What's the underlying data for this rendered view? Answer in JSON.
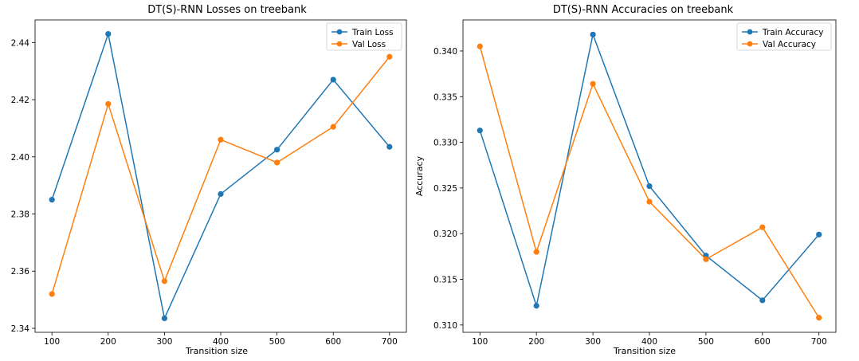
{
  "chart_data": [
    {
      "type": "line",
      "title": "DT(S)-RNN Losses on treebank",
      "xlabel": "Transition size",
      "ylabel": "",
      "x": [
        100,
        200,
        300,
        400,
        500,
        600,
        700
      ],
      "series": [
        {
          "name": "Train Loss",
          "color": "#1f77b4",
          "values": [
            2.385,
            2.443,
            2.3435,
            2.387,
            2.4025,
            2.427,
            2.4035
          ]
        },
        {
          "name": "Val Loss",
          "color": "#ff7f0e",
          "values": [
            2.352,
            2.4185,
            2.3565,
            2.406,
            2.398,
            2.4105,
            2.435
          ]
        }
      ],
      "xticks": [
        100,
        200,
        300,
        400,
        500,
        600,
        700
      ],
      "yticks": [
        2.34,
        2.36,
        2.38,
        2.4,
        2.42,
        2.44
      ],
      "ytick_labels": [
        "2.34",
        "2.36",
        "2.38",
        "2.40",
        "2.42",
        "2.44"
      ],
      "xlim": [
        70,
        730
      ],
      "ylim": [
        2.3386,
        2.4479
      ],
      "grid": false,
      "legend": "upper right"
    },
    {
      "type": "line",
      "title": "DT(S)-RNN Accuracies on treebank",
      "xlabel": "Transition size",
      "ylabel": "Accuracy",
      "x": [
        100,
        200,
        300,
        400,
        500,
        600,
        700
      ],
      "series": [
        {
          "name": "Train Accuracy",
          "color": "#1f77b4",
          "values": [
            0.3313,
            0.3121,
            0.3418,
            0.3252,
            0.3176,
            0.3127,
            0.3199
          ]
        },
        {
          "name": "Val Accuracy",
          "color": "#ff7f0e",
          "values": [
            0.3405,
            0.318,
            0.3364,
            0.3235,
            0.3172,
            0.3207,
            0.3108
          ]
        }
      ],
      "xticks": [
        100,
        200,
        300,
        400,
        500,
        600,
        700
      ],
      "yticks": [
        0.31,
        0.315,
        0.32,
        0.325,
        0.33,
        0.335,
        0.34
      ],
      "ytick_labels": [
        "0.310",
        "0.315",
        "0.320",
        "0.325",
        "0.330",
        "0.335",
        "0.340"
      ],
      "xlim": [
        70,
        730
      ],
      "ylim": [
        0.3092,
        0.3434
      ],
      "grid": false,
      "legend": "upper right"
    }
  ]
}
